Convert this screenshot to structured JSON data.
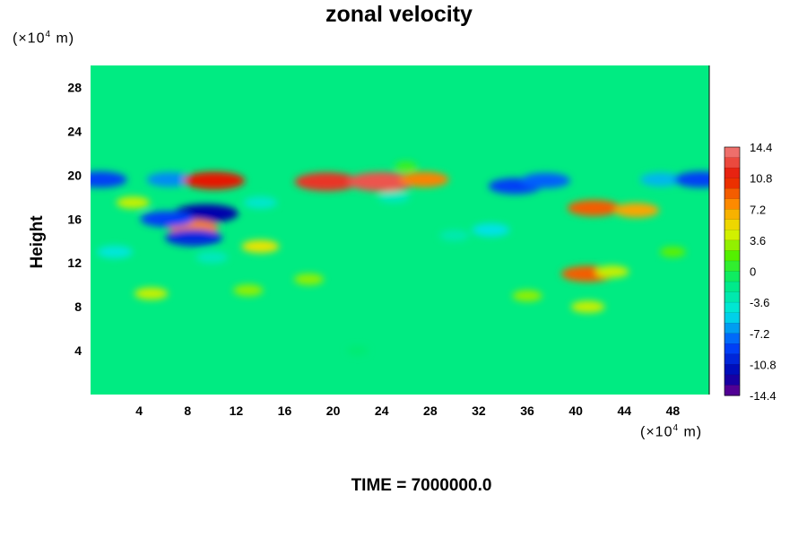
{
  "chart_data": {
    "type": "heatmap",
    "title": "zonal velocity",
    "ylabel": "Height",
    "xlabel": "",
    "x_unit": "(×10",
    "x_unit_exp": "4",
    "x_unit_tail": " m)",
    "y_unit": "(×10",
    "y_unit_exp": "4",
    "y_unit_tail": " m)",
    "xlim": [
      0,
      51
    ],
    "ylim": [
      0,
      30
    ],
    "x_ticks": [
      4,
      8,
      12,
      16,
      20,
      24,
      28,
      32,
      36,
      40,
      44,
      48
    ],
    "y_ticks": [
      4,
      8,
      12,
      16,
      20,
      24,
      28
    ],
    "colorbar": {
      "range": [
        -14.4,
        14.4
      ],
      "step": 1.2,
      "labels": [
        "14.4",
        "10.8",
        "7.2",
        "3.6",
        "0",
        "-3.6",
        "-7.2",
        "-10.8",
        "-14.4"
      ]
    },
    "background_value": -1.5,
    "features": [
      {
        "x": 0.8,
        "y": 19.6,
        "value": -9
      },
      {
        "x": 6.5,
        "y": 19.6,
        "value": -7
      },
      {
        "x": 9.5,
        "y": 16.5,
        "value": -12
      },
      {
        "x": 10.2,
        "y": 19.5,
        "value": 11
      },
      {
        "x": 8.5,
        "y": 15.2,
        "value": 8
      },
      {
        "x": 8.5,
        "y": 14.3,
        "value": -10
      },
      {
        "x": 6.3,
        "y": 16.0,
        "value": -9
      },
      {
        "x": 3.5,
        "y": 17.5,
        "value": 4
      },
      {
        "x": 19.5,
        "y": 19.4,
        "value": 12
      },
      {
        "x": 24.0,
        "y": 19.4,
        "value": 13
      },
      {
        "x": 27.5,
        "y": 19.6,
        "value": 8
      },
      {
        "x": 14.0,
        "y": 13.5,
        "value": 5
      },
      {
        "x": 33.0,
        "y": 15.0,
        "value": -5
      },
      {
        "x": 35.0,
        "y": 19.0,
        "value": -9
      },
      {
        "x": 37.5,
        "y": 19.5,
        "value": -8
      },
      {
        "x": 41.5,
        "y": 17.0,
        "value": 9
      },
      {
        "x": 45.0,
        "y": 16.8,
        "value": 7
      },
      {
        "x": 47.0,
        "y": 19.6,
        "value": -6
      },
      {
        "x": 50.3,
        "y": 19.6,
        "value": -9
      },
      {
        "x": 41.0,
        "y": 11.0,
        "value": 9
      },
      {
        "x": 43.0,
        "y": 11.2,
        "value": 4
      },
      {
        "x": 2.0,
        "y": 13.0,
        "value": -4.5
      },
      {
        "x": 10.0,
        "y": 12.5,
        "value": -3.5
      },
      {
        "x": 5.0,
        "y": 9.2,
        "value": 4
      },
      {
        "x": 13.0,
        "y": 9.5,
        "value": 3
      },
      {
        "x": 18.0,
        "y": 10.5,
        "value": 3
      },
      {
        "x": 36.0,
        "y": 9.0,
        "value": 3
      },
      {
        "x": 41.0,
        "y": 8.0,
        "value": 4
      },
      {
        "x": 25.0,
        "y": 18.0,
        "value": -3.5
      },
      {
        "x": 14.0,
        "y": 17.5,
        "value": -4
      },
      {
        "x": 30.0,
        "y": 14.5,
        "value": -3
      },
      {
        "x": 22.0,
        "y": 4.0,
        "value": -1
      },
      {
        "x": 48.0,
        "y": 13.0,
        "value": 2
      },
      {
        "x": 26.0,
        "y": 20.8,
        "value": 1
      }
    ]
  },
  "footer": {
    "time_label": "TIME = 7000000.0"
  }
}
